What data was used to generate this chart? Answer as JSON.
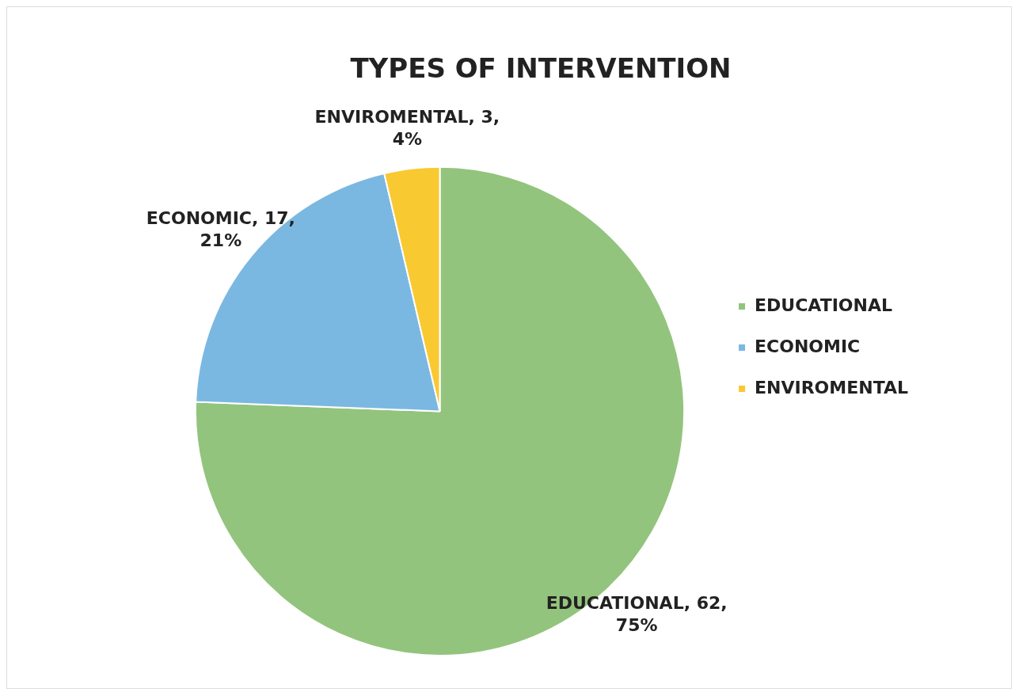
{
  "chart_data": {
    "type": "pie",
    "title": "TYPES OF INTERVENTION",
    "categories": [
      "EDUCATIONAL",
      "ECONOMIC",
      "ENVIROMENTAL"
    ],
    "values": [
      62,
      17,
      3
    ],
    "colors": [
      "#93c47d",
      "#7ab8e2",
      "#f9c932"
    ],
    "value_labels": [
      "EDUCATIONAL, 62, 75%",
      "ECONOMIC, 17, 21%",
      "ENVIROMENTAL, 3, 4%"
    ],
    "legend": "right"
  }
}
